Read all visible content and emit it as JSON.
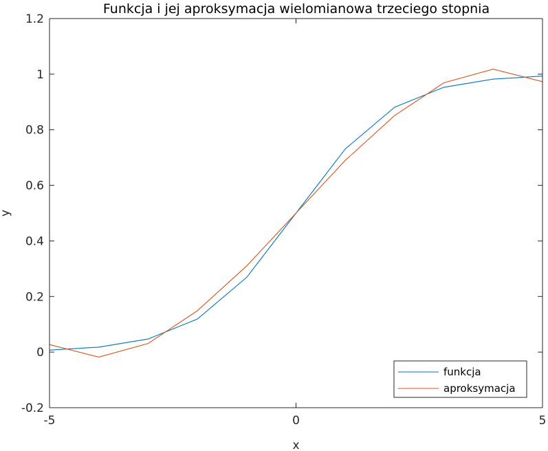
{
  "chart_data": {
    "type": "line",
    "title": "Funkcja i jej aproksymacja wielomianowa trzeciego stopnia",
    "xlabel": "x",
    "ylabel": "y",
    "xlim": [
      -5,
      5
    ],
    "ylim": [
      -0.2,
      1.2
    ],
    "xticks": [
      -5,
      0,
      5
    ],
    "xtick_labels": [
      "-5",
      "0",
      "5"
    ],
    "yticks": [
      -0.2,
      0,
      0.2,
      0.4,
      0.6,
      0.8,
      1,
      1.2
    ],
    "ytick_labels": [
      "-0.2",
      "0",
      "0.2",
      "0.4",
      "0.6",
      "0.8",
      "1",
      "1.2"
    ],
    "grid": false,
    "legend_position": "bottom-right",
    "series": [
      {
        "name": "funkcja",
        "color": "#0072bd",
        "x": [
          -5,
          -4,
          -3,
          -2,
          -1,
          0,
          1,
          2,
          3,
          4,
          5
        ],
        "y": [
          0.007,
          0.018,
          0.047,
          0.119,
          0.269,
          0.5,
          0.731,
          0.881,
          0.953,
          0.982,
          0.993
        ]
      },
      {
        "name": "aproksymacja",
        "color": "#d95319",
        "x": [
          -5,
          -4,
          -3,
          -2,
          -1,
          0,
          1,
          2,
          3,
          4,
          5
        ],
        "y": [
          0.027,
          -0.018,
          0.031,
          0.149,
          0.31,
          0.5,
          0.69,
          0.851,
          0.969,
          1.018,
          0.973
        ]
      }
    ]
  }
}
